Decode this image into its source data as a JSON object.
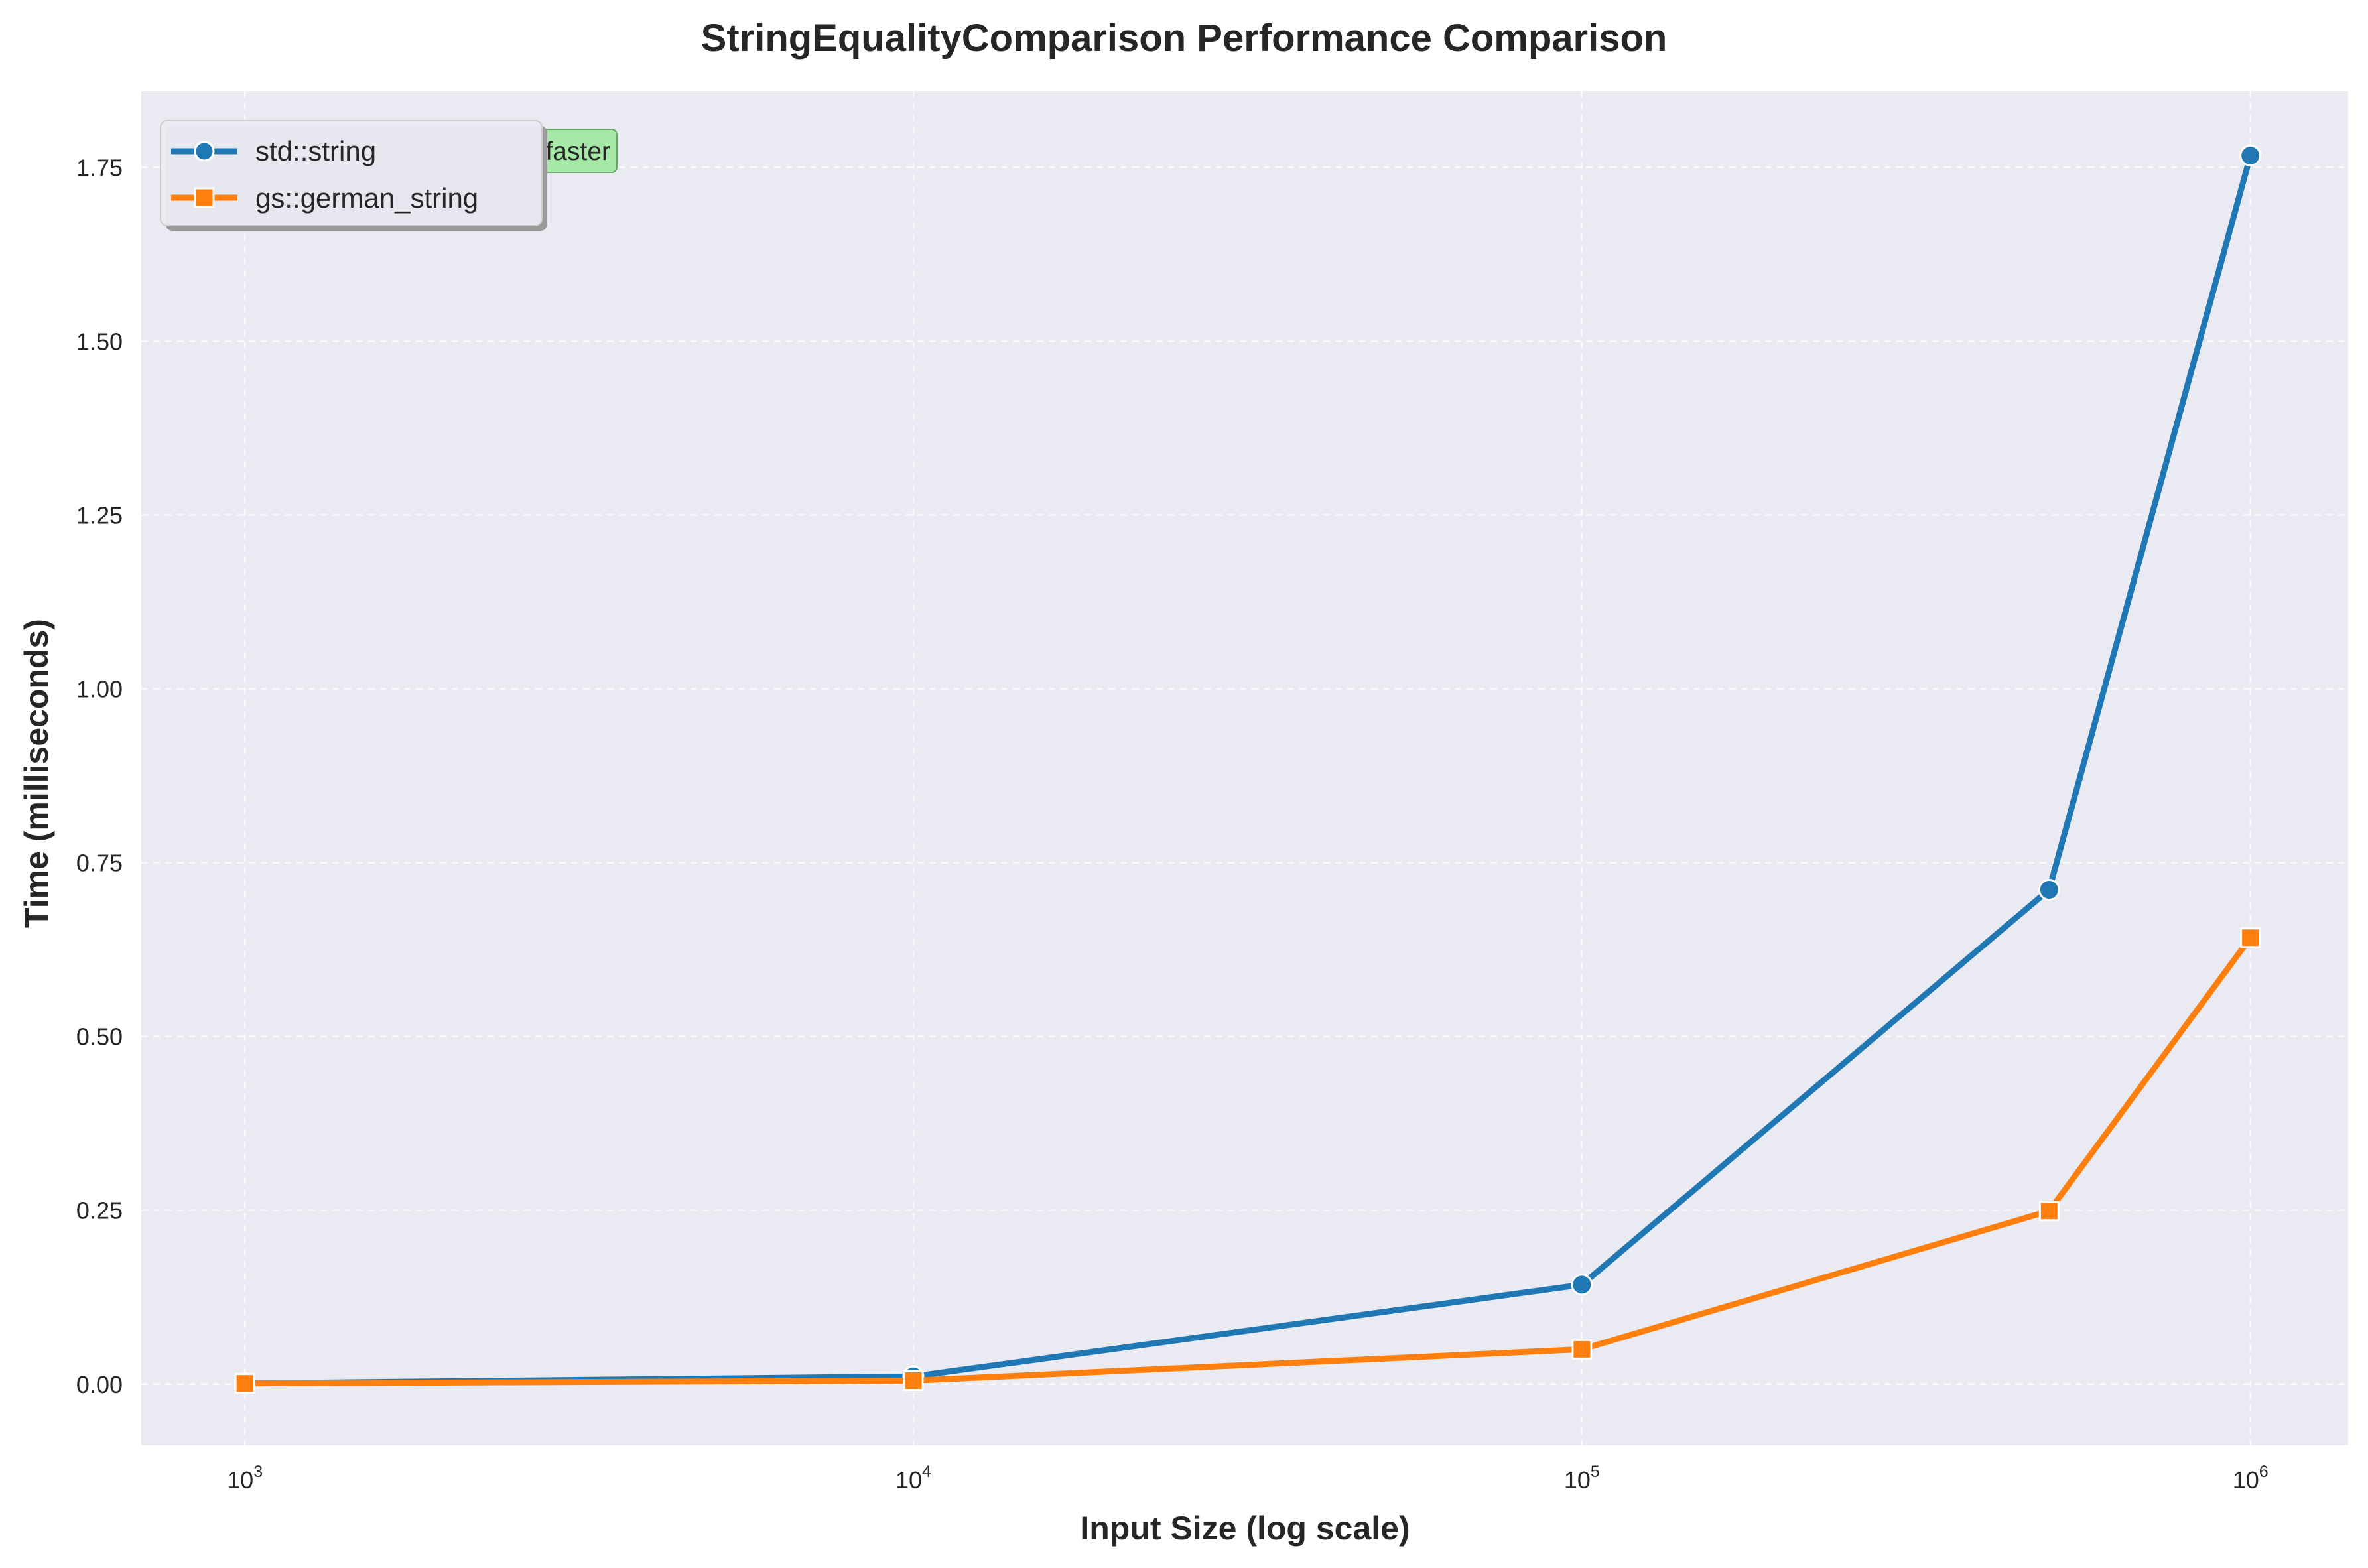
{
  "chart_data": {
    "type": "line",
    "title": "StringEqualityComparison Performance Comparison",
    "xlabel": "Input Size (log scale)",
    "ylabel": "Time (milliseconds)",
    "xscale": "log",
    "xlim": [
      700,
      1400000
    ],
    "ylim": [
      -0.088,
      1.86
    ],
    "x_ticks": [
      {
        "value": 1000,
        "base": "10",
        "exp": "3"
      },
      {
        "value": 10000,
        "base": "10",
        "exp": "4"
      },
      {
        "value": 100000,
        "base": "10",
        "exp": "5"
      },
      {
        "value": 1000000,
        "base": "10",
        "exp": "6"
      }
    ],
    "y_ticks": [
      0,
      0.25,
      0.5,
      0.75,
      1.0,
      1.25,
      1.5,
      1.75
    ],
    "y_tick_labels": [
      "0.00",
      "0.25",
      "0.50",
      "0.75",
      "1.00",
      "1.25",
      "1.50",
      "1.75"
    ],
    "grid": true,
    "legend_position": "top-left",
    "annotation": {
      "text": "faster",
      "position": "top-left",
      "color": "#90ee90"
    },
    "series": [
      {
        "name": "std::string",
        "color": "#1f77b4",
        "marker": "circle",
        "x": [
          1000,
          10000,
          100000,
          500000,
          1000000
        ],
        "y": [
          0.001,
          0.011,
          0.143,
          0.711,
          1.767
        ]
      },
      {
        "name": "gs::german_string",
        "color": "#ff7f0e",
        "marker": "square",
        "x": [
          1000,
          10000,
          100000,
          500000,
          1000000
        ],
        "y": [
          0.001,
          0.005,
          0.05,
          0.249,
          0.642
        ]
      }
    ]
  }
}
